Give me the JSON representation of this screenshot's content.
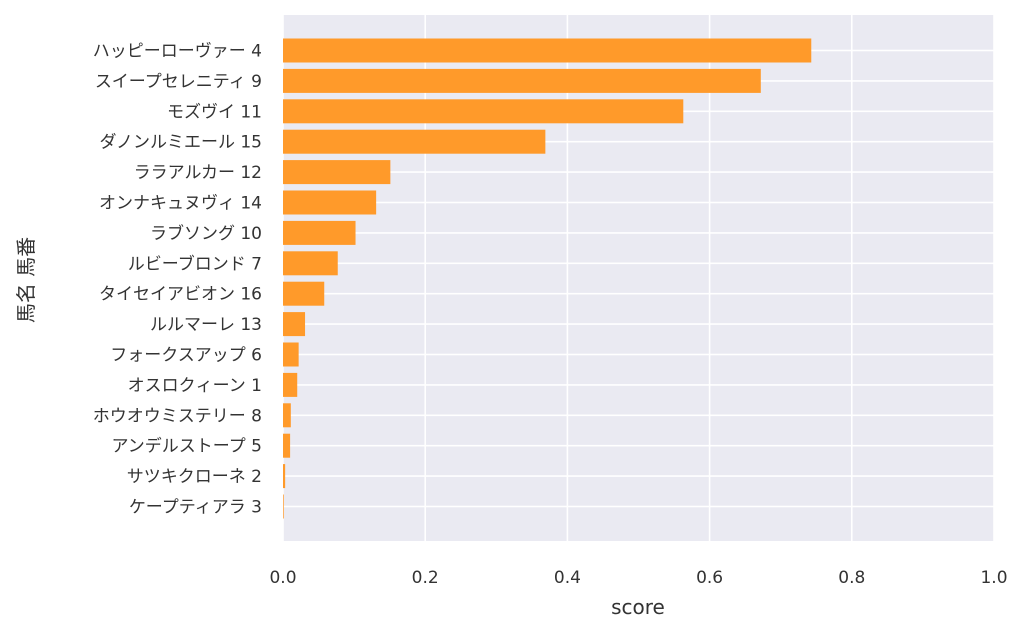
{
  "chart_data": {
    "type": "bar",
    "orientation": "horizontal",
    "xlabel": "score",
    "ylabel": "馬名 馬番",
    "xlim": [
      0.0,
      1.0
    ],
    "xticks": [
      "0.0",
      "0.2",
      "0.4",
      "0.6",
      "0.8",
      "1.0"
    ],
    "grid": true,
    "bar_color": "#ff9a2a",
    "plot_background": "#eaeaf2",
    "categories": [
      "ハッピーローヴァー 4",
      "スイープセレニティ 9",
      "モズヴイ 11",
      "ダノンルミエール 15",
      "ララアルカー 12",
      "オンナキュヌヴィ 14",
      "ラブソング 10",
      "ルビーブロンド 7",
      "タイセイアビオン 16",
      "ルルマーレ 13",
      "フォークスアップ 6",
      "オスロクィーン 1",
      "ホウオウミステリー 8",
      "アンデルストープ 5",
      "サツキクローネ 2",
      "ケープティアラ 3"
    ],
    "values": [
      0.743,
      0.672,
      0.563,
      0.369,
      0.151,
      0.131,
      0.102,
      0.077,
      0.058,
      0.031,
      0.022,
      0.02,
      0.011,
      0.01,
      0.003,
      0.001
    ]
  }
}
